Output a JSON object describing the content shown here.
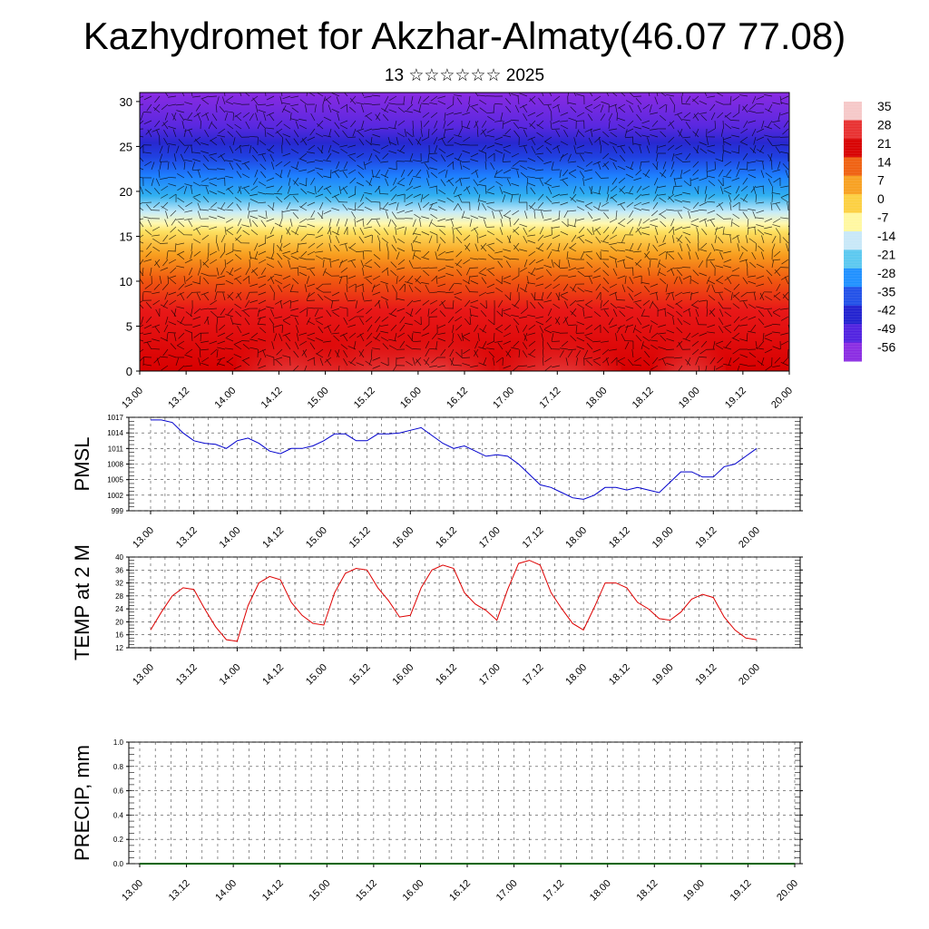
{
  "header": {
    "title": "Kazhydromet for Akzhar-Almaty(46.07 77.08)",
    "subtitle": "13 ☆☆☆☆☆☆ 2025"
  },
  "chart_data": [
    {
      "type": "heatmap",
      "title": "",
      "ylim": [
        0,
        31
      ],
      "yticks": [
        "0",
        "5",
        "10",
        "15",
        "20",
        "25",
        "30"
      ],
      "xticks": [
        "13.00",
        "13.12",
        "14.00",
        "14.12",
        "15.00",
        "15.12",
        "16.00",
        "16.12",
        "17.00",
        "17.12",
        "18.00",
        "18.12",
        "19.00",
        "19.12",
        "20.00"
      ],
      "colorbar": {
        "labels": [
          "35",
          "28",
          "21",
          "14",
          "7",
          "0",
          "-7",
          "-14",
          "-21",
          "-28",
          "-35",
          "-42",
          "-49",
          "-56"
        ],
        "colors": [
          "#f6c8c8",
          "#e83030",
          "#d80000",
          "#f06010",
          "#f8a020",
          "#fcd040",
          "#fff8a0",
          "#c8e8f8",
          "#5ac8f0",
          "#1e90ff",
          "#2050e8",
          "#2020d0",
          "#5020e0",
          "#8a2be2"
        ]
      },
      "overlay": "wind barbs"
    },
    {
      "type": "line",
      "ylabel": "PMSL",
      "ylim": [
        999,
        1017
      ],
      "yticks": [
        "1017",
        "1014",
        "1011",
        "1008",
        "1005",
        "1002",
        "999"
      ],
      "xticks": [
        "13.00",
        "13.12",
        "14.00",
        "14.12",
        "15.00",
        "15.12",
        "16.00",
        "16.12",
        "17.00",
        "17.12",
        "18.00",
        "18.12",
        "19.00",
        "19.12",
        "20.00"
      ],
      "color": "#0000cc",
      "values": [
        1016.5,
        1016.5,
        1016,
        1014,
        1012.5,
        1012,
        1011.8,
        1011,
        1012.5,
        1013,
        1012,
        1010.5,
        1010,
        1011,
        1011,
        1011.5,
        1012.5,
        1013.8,
        1013.8,
        1012.5,
        1012.5,
        1013.8,
        1013.8,
        1014,
        1014.5,
        1015,
        1013.5,
        1012,
        1011,
        1011.5,
        1010.5,
        1009.5,
        1009.8,
        1009.5,
        1008,
        1006,
        1004,
        1003.5,
        1002.5,
        1001.5,
        1001.2,
        1002,
        1003.5,
        1003.5,
        1003,
        1003.5,
        1003,
        1002.5,
        1004.5,
        1006.5,
        1006.5,
        1005.5,
        1005.5,
        1007.5,
        1008,
        1009.5,
        1011
      ]
    },
    {
      "type": "line",
      "ylabel": "TEMP at 2 M",
      "ylim": [
        12,
        40
      ],
      "yticks": [
        "40",
        "36",
        "32",
        "28",
        "24",
        "20",
        "16",
        "12"
      ],
      "xticks": [
        "13.00",
        "13.12",
        "14.00",
        "14.12",
        "15.00",
        "15.12",
        "16.00",
        "16.12",
        "17.00",
        "17.12",
        "18.00",
        "18.12",
        "19.00",
        "19.12",
        "20.00"
      ],
      "color": "#dd0000",
      "values": [
        17.5,
        23,
        28,
        30.5,
        30,
        24,
        18.5,
        14.5,
        14,
        25,
        32,
        34,
        33,
        26,
        22,
        19.5,
        19,
        29,
        35,
        36.5,
        36,
        30.5,
        26.5,
        21.5,
        22,
        30.5,
        36,
        37.5,
        36.5,
        29,
        25.5,
        23.5,
        20.5,
        30,
        38,
        39,
        37.5,
        29,
        24,
        19.5,
        17.5,
        24.5,
        32,
        32,
        30.5,
        26,
        24,
        21,
        20.5,
        23,
        27,
        28.5,
        27.5,
        21.5,
        17.5,
        15,
        14.5
      ]
    },
    {
      "type": "line",
      "ylabel": "PRECIP, mm",
      "ylim": [
        0,
        1
      ],
      "yticks": [
        "1.0",
        "0.8",
        "0.6",
        "0.4",
        "0.2",
        "0.0"
      ],
      "xticks": [
        "13.00",
        "13.12",
        "14.00",
        "14.12",
        "15.00",
        "15.12",
        "16.00",
        "16.12",
        "17.00",
        "17.12",
        "18.00",
        "18.12",
        "19.00",
        "19.12",
        "20.00"
      ],
      "color": "#006400",
      "values": [
        0,
        0,
        0,
        0,
        0,
        0,
        0,
        0,
        0,
        0,
        0,
        0,
        0,
        0,
        0,
        0,
        0,
        0,
        0,
        0,
        0,
        0,
        0,
        0,
        0,
        0,
        0,
        0,
        0,
        0,
        0,
        0,
        0,
        0,
        0,
        0,
        0,
        0,
        0,
        0,
        0,
        0,
        0,
        0,
        0,
        0,
        0,
        0,
        0,
        0,
        0,
        0,
        0,
        0,
        0,
        0,
        0
      ]
    }
  ]
}
